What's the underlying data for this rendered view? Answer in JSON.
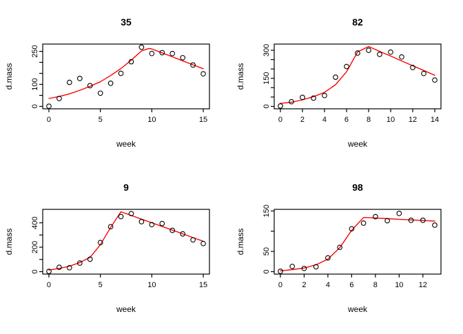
{
  "page": {
    "background": "#ffffff"
  },
  "chart_data": [
    {
      "type": "scatter",
      "title": "35",
      "xlabel": "week",
      "ylabel": "d.mass",
      "xlim": [
        -0.6,
        15.6
      ],
      "ylim": [
        -11,
        283
      ],
      "grid": false,
      "legend": "none",
      "point_style": "open-circle",
      "point_color": "#000000",
      "line_color": "#ff0000",
      "x_ticks": [
        {
          "v": 0,
          "label": "0"
        },
        {
          "v": 5,
          "label": "5"
        },
        {
          "v": 10,
          "label": "10"
        },
        {
          "v": 15,
          "label": "15"
        }
      ],
      "y_ticks": [
        {
          "v": 0,
          "label": "0"
        },
        {
          "v": 50,
          "label": ""
        },
        {
          "v": 100,
          "label": "100"
        },
        {
          "v": 150,
          "label": ""
        },
        {
          "v": 200,
          "label": ""
        },
        {
          "v": 250,
          "label": "250"
        }
      ],
      "points": {
        "x": [
          0,
          1,
          2,
          3,
          4,
          5,
          6,
          7,
          8,
          9,
          10,
          11,
          12,
          13,
          14,
          15
        ],
        "y": [
          1,
          36,
          109,
          127,
          94,
          60,
          105,
          150,
          203,
          269,
          240,
          244,
          240,
          221,
          188,
          148
        ]
      },
      "fit_line": [
        [
          0,
          36
        ],
        [
          1,
          45
        ],
        [
          2,
          57
        ],
        [
          3,
          73
        ],
        [
          4,
          91
        ],
        [
          5,
          112
        ],
        [
          6,
          140
        ],
        [
          7,
          172
        ],
        [
          8,
          210
        ],
        [
          9,
          252
        ],
        [
          9.7,
          263
        ],
        [
          10,
          261
        ],
        [
          11,
          243
        ],
        [
          12,
          225
        ],
        [
          13,
          207
        ],
        [
          14,
          189
        ],
        [
          15,
          171
        ]
      ]
    },
    {
      "type": "scatter",
      "title": "82",
      "xlabel": "week",
      "ylabel": "d.mass",
      "xlim": [
        -0.56,
        14.56
      ],
      "ylim": [
        -13,
        333
      ],
      "grid": false,
      "legend": "none",
      "point_style": "open-circle",
      "point_color": "#000000",
      "line_color": "#ff0000",
      "x_ticks": [
        {
          "v": 0,
          "label": "0"
        },
        {
          "v": 2,
          "label": "2"
        },
        {
          "v": 4,
          "label": "4"
        },
        {
          "v": 6,
          "label": "6"
        },
        {
          "v": 8,
          "label": "8"
        },
        {
          "v": 10,
          "label": "10"
        },
        {
          "v": 12,
          "label": "12"
        },
        {
          "v": 14,
          "label": "14"
        }
      ],
      "y_ticks": [
        {
          "v": 0,
          "label": "0"
        },
        {
          "v": 50,
          "label": ""
        },
        {
          "v": 100,
          "label": ""
        },
        {
          "v": 150,
          "label": "150"
        },
        {
          "v": 200,
          "label": ""
        },
        {
          "v": 250,
          "label": ""
        },
        {
          "v": 300,
          "label": "300"
        }
      ],
      "points": {
        "x": [
          0,
          1,
          2,
          3,
          4,
          5,
          6,
          7,
          8,
          9,
          10,
          11,
          12,
          13,
          14
        ],
        "y": [
          2,
          25,
          48,
          44,
          58,
          156,
          213,
          285,
          300,
          278,
          290,
          264,
          208,
          176,
          141
        ]
      },
      "fit_line": [
        [
          0,
          16
        ],
        [
          1,
          22
        ],
        [
          2,
          35
        ],
        [
          3,
          52
        ],
        [
          4,
          75
        ],
        [
          5,
          116
        ],
        [
          6,
          185
        ],
        [
          7,
          291
        ],
        [
          8,
          320
        ],
        [
          9,
          294
        ],
        [
          10,
          269
        ],
        [
          11,
          243
        ],
        [
          12,
          217
        ],
        [
          13,
          192
        ],
        [
          14,
          166
        ]
      ]
    },
    {
      "type": "scatter",
      "title": "9",
      "xlabel": "week",
      "ylabel": "d.mass",
      "xlim": [
        -0.6,
        15.6
      ],
      "ylim": [
        -20,
        510
      ],
      "grid": false,
      "legend": "none",
      "point_style": "open-circle",
      "point_color": "#000000",
      "line_color": "#ff0000",
      "x_ticks": [
        {
          "v": 0,
          "label": "0"
        },
        {
          "v": 5,
          "label": "5"
        },
        {
          "v": 10,
          "label": "10"
        },
        {
          "v": 15,
          "label": "15"
        }
      ],
      "y_ticks": [
        {
          "v": 0,
          "label": "0"
        },
        {
          "v": 100,
          "label": ""
        },
        {
          "v": 200,
          "label": "200"
        },
        {
          "v": 300,
          "label": ""
        },
        {
          "v": 400,
          "label": "400"
        }
      ],
      "points": {
        "x": [
          0,
          1,
          2,
          3,
          4,
          5,
          6,
          7,
          8,
          9,
          10,
          11,
          12,
          13,
          14,
          15
        ],
        "y": [
          2,
          36,
          32,
          70,
          102,
          238,
          368,
          451,
          475,
          409,
          385,
          394,
          338,
          309,
          260,
          230
        ]
      },
      "fit_line": [
        [
          0,
          13
        ],
        [
          1,
          26
        ],
        [
          2,
          45
        ],
        [
          3,
          74
        ],
        [
          4,
          117
        ],
        [
          5,
          221
        ],
        [
          6,
          362
        ],
        [
          7,
          490
        ],
        [
          8,
          460
        ],
        [
          9,
          430
        ],
        [
          10,
          400
        ],
        [
          11,
          370
        ],
        [
          12,
          340
        ],
        [
          13,
          310
        ],
        [
          14,
          279
        ],
        [
          15,
          249
        ]
      ]
    },
    {
      "type": "scatter",
      "title": "98",
      "xlabel": "week",
      "ylabel": "d.mass",
      "xlim": [
        -0.52,
        13.52
      ],
      "ylim": [
        -6,
        154
      ],
      "grid": false,
      "legend": "none",
      "point_style": "open-circle",
      "point_color": "#000000",
      "line_color": "#ff0000",
      "x_ticks": [
        {
          "v": 0,
          "label": "0"
        },
        {
          "v": 2,
          "label": "2"
        },
        {
          "v": 4,
          "label": "4"
        },
        {
          "v": 6,
          "label": "6"
        },
        {
          "v": 8,
          "label": "8"
        },
        {
          "v": 10,
          "label": "10"
        },
        {
          "v": 12,
          "label": "12"
        }
      ],
      "y_ticks": [
        {
          "v": 0,
          "label": "0"
        },
        {
          "v": 50,
          "label": "50"
        },
        {
          "v": 100,
          "label": ""
        },
        {
          "v": 150,
          "label": "150"
        }
      ],
      "points": {
        "x": [
          0,
          1,
          2,
          3,
          4,
          5,
          6,
          7,
          8,
          9,
          10,
          11,
          12,
          13
        ],
        "y": [
          1,
          13,
          8,
          12,
          34,
          60,
          106,
          120,
          136,
          126,
          144,
          127,
          127,
          115
        ]
      },
      "fit_line": [
        [
          0,
          2
        ],
        [
          1,
          5
        ],
        [
          2,
          9
        ],
        [
          3,
          17
        ],
        [
          4,
          31
        ],
        [
          5,
          59
        ],
        [
          6,
          102
        ],
        [
          7,
          134
        ],
        [
          8,
          132.5
        ],
        [
          9,
          131
        ],
        [
          10,
          129.5
        ],
        [
          11,
          128
        ],
        [
          12,
          126.5
        ],
        [
          13,
          125
        ]
      ]
    }
  ]
}
